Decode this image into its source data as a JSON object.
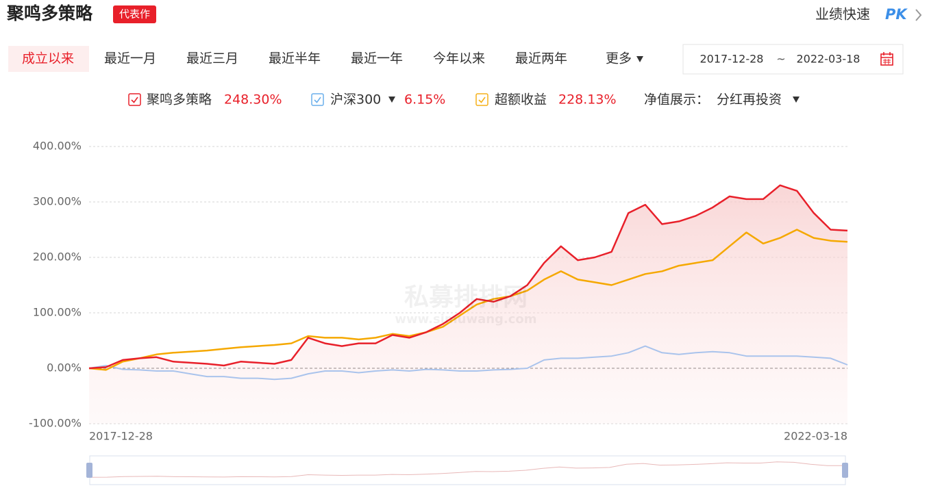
{
  "header": {
    "title": "聚鸣多策略",
    "badge": "代表作",
    "pk_text": "业绩快速",
    "pk_label": "PK"
  },
  "tabs": [
    "成立以来",
    "最近一月",
    "最近三月",
    "最近半年",
    "最近一年",
    "今年以来",
    "最近两年",
    "更多"
  ],
  "date_range": {
    "start": "2017-12-28",
    "separator": "~",
    "end": "2022-03-18"
  },
  "display": {
    "label": "净值展示：",
    "value": "分红再投资"
  },
  "watermark": {
    "name": "私募排排网",
    "url": "www.simuwang.com"
  },
  "chart_data": {
    "type": "line",
    "categories": [
      "2017-12-28",
      null,
      null,
      null,
      null,
      null,
      null,
      null,
      null,
      null,
      null,
      null,
      null,
      null,
      null,
      null,
      null,
      null,
      null,
      null,
      null,
      null,
      null,
      null,
      null,
      null,
      null,
      null,
      null,
      null,
      null,
      null,
      null,
      null,
      null,
      null,
      null,
      null,
      null,
      null,
      null,
      null,
      null,
      null,
      null,
      "2022-03-18"
    ],
    "series": [
      {
        "name": "聚鸣多策略",
        "color": "#e8202a",
        "total_return_label": "248.30%",
        "area": true,
        "values": [
          0,
          2,
          15,
          18,
          20,
          12,
          10,
          8,
          5,
          12,
          10,
          8,
          15,
          55,
          45,
          40,
          45,
          45,
          60,
          55,
          65,
          80,
          100,
          125,
          120,
          130,
          150,
          190,
          220,
          195,
          200,
          210,
          280,
          295,
          260,
          265,
          275,
          290,
          310,
          305,
          305,
          330,
          320,
          280,
          250,
          248.3
        ]
      },
      {
        "name": "沪深300",
        "color": "#a9c3ec",
        "total_return_label": "6.15%",
        "dropdown": true,
        "values": [
          0,
          5,
          -2,
          -3,
          -5,
          -5,
          -10,
          -15,
          -15,
          -18,
          -18,
          -20,
          -18,
          -10,
          -5,
          -5,
          -8,
          -5,
          -3,
          -5,
          -2,
          -3,
          -5,
          -5,
          -3,
          -2,
          0,
          15,
          18,
          18,
          20,
          22,
          28,
          40,
          28,
          25,
          28,
          30,
          28,
          22,
          22,
          22,
          22,
          20,
          18,
          6.15
        ]
      },
      {
        "name": "超额收益",
        "color": "#f5a800",
        "total_return_label": "228.13%",
        "values": [
          0,
          -3,
          12,
          18,
          25,
          28,
          30,
          32,
          35,
          38,
          40,
          42,
          45,
          58,
          55,
          55,
          52,
          55,
          62,
          58,
          65,
          75,
          95,
          115,
          125,
          130,
          140,
          160,
          175,
          160,
          155,
          150,
          160,
          170,
          175,
          185,
          190,
          195,
          220,
          245,
          225,
          235,
          250,
          235,
          230,
          228.13
        ]
      }
    ],
    "ylim": [
      -100,
      400
    ],
    "yticks": [
      {
        "value": -100,
        "label": "-100.00%"
      },
      {
        "value": 0,
        "label": "0.00%"
      },
      {
        "value": 100,
        "label": "100.00%"
      },
      {
        "value": 200,
        "label": "200.00%"
      },
      {
        "value": 300,
        "label": "300.00%"
      },
      {
        "value": 400,
        "label": "400.00%"
      }
    ],
    "grid": true
  }
}
